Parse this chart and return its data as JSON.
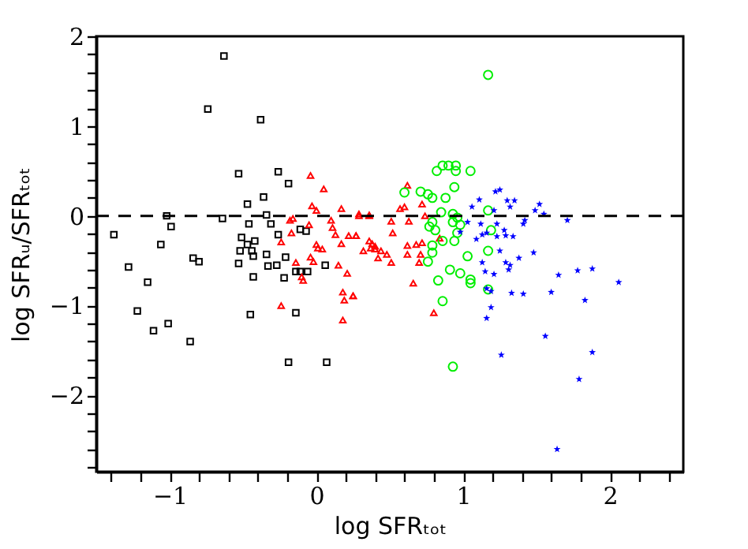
{
  "chart_data": {
    "type": "scatter",
    "xlabel": "log SFRₜₒₜ",
    "ylabel": "log SFRᵤ/SFRₜₒₜ",
    "xlim": [
      -1.5,
      2.5
    ],
    "ylim": [
      -2.85,
      2
    ],
    "xticks": [
      {
        "value": -1.4,
        "label": null
      },
      {
        "value": -1.2,
        "label": null
      },
      -1,
      {
        "value": -0.8,
        "label": null
      },
      {
        "value": -0.6,
        "label": null
      },
      {
        "value": -0.4,
        "label": null
      },
      {
        "value": -0.2,
        "label": null
      },
      0,
      {
        "value": 0.2,
        "label": null
      },
      {
        "value": 0.4,
        "label": null
      },
      {
        "value": 0.6,
        "label": null
      },
      {
        "value": 0.8,
        "label": null
      },
      1,
      {
        "value": 1.2,
        "label": null
      },
      {
        "value": 1.4,
        "label": null
      },
      {
        "value": 1.6,
        "label": null
      },
      {
        "value": 1.8,
        "label": null
      },
      2,
      {
        "value": 2.2,
        "label": null
      },
      {
        "value": 2.4,
        "label": null
      }
    ],
    "yticks": [
      {
        "value": -2.8,
        "label": null
      },
      {
        "value": -2.6,
        "label": null
      },
      {
        "value": -2.4,
        "label": null
      },
      {
        "value": -2.2,
        "label": null
      },
      -2,
      {
        "value": -1.8,
        "label": null
      },
      {
        "value": -1.6,
        "label": null
      },
      {
        "value": -1.4,
        "label": null
      },
      {
        "value": -1.2,
        "label": null
      },
      -1,
      {
        "value": -0.8,
        "label": null
      },
      {
        "value": -0.6,
        "label": null
      },
      {
        "value": -0.4,
        "label": null
      },
      {
        "value": -0.2,
        "label": null
      },
      0,
      {
        "value": 0.2,
        "label": null
      },
      {
        "value": 0.4,
        "label": null
      },
      {
        "value": 0.6,
        "label": null
      },
      {
        "value": 0.8,
        "label": null
      },
      1,
      {
        "value": 1.2,
        "label": null
      },
      {
        "value": 1.4,
        "label": null
      },
      {
        "value": 1.6,
        "label": null
      },
      {
        "value": 1.8,
        "label": null
      },
      2
    ],
    "ref_lines": [
      {
        "axis": "y",
        "value": 0,
        "color": "#000000",
        "line_style": "dashed"
      }
    ],
    "series": [
      {
        "color": "#000000",
        "marker": "square",
        "x": [
          -0.63,
          -0.74,
          -0.38,
          -0.53,
          -0.26,
          -0.19,
          -0.36,
          -0.47,
          -1.02,
          -0.64,
          -0.34,
          -1.38,
          -0.99,
          -0.46,
          -0.31,
          -1.06,
          -0.51,
          -0.47,
          -0.42,
          -0.26,
          -0.11,
          -0.07,
          -0.52,
          -0.44,
          -0.43,
          -0.34,
          -0.21,
          -0.84,
          -0.8,
          -0.53,
          -0.33,
          -0.27,
          0.06,
          -1.28,
          -0.14,
          -0.11,
          -0.06,
          -0.43,
          -0.22,
          -1.15,
          -1.22,
          -0.45,
          -0.14,
          -1.01,
          -1.11,
          -0.86,
          -0.19,
          0.07
        ],
        "values": [
          1.78,
          1.19,
          1.07,
          0.47,
          0.49,
          0.36,
          0.21,
          0.13,
          0.0,
          -0.03,
          0.01,
          -0.21,
          -0.12,
          -0.09,
          -0.09,
          -0.32,
          -0.24,
          -0.32,
          -0.28,
          -0.21,
          -0.15,
          -0.17,
          -0.39,
          -0.39,
          -0.45,
          -0.43,
          -0.46,
          -0.47,
          -0.51,
          -0.53,
          -0.56,
          -0.55,
          -0.55,
          -0.57,
          -0.62,
          -0.62,
          -0.62,
          -0.68,
          -0.69,
          -0.74,
          -1.06,
          -1.1,
          -1.08,
          -1.2,
          -1.28,
          -1.4,
          -1.63,
          -1.63
        ]
      },
      {
        "color": "#ff0000",
        "marker": "triangle",
        "x": [
          -0.04,
          0.05,
          -0.03,
          0.0,
          0.17,
          0.29,
          0.36,
          -0.18,
          -0.16,
          -0.05,
          -0.17,
          0.1,
          0.11,
          0.13,
          0.22,
          0.27,
          -0.24,
          0.0,
          0.01,
          0.17,
          0.04,
          0.32,
          0.38,
          0.4,
          0.37,
          -0.04,
          -0.02,
          -0.14,
          -0.1,
          -0.09,
          0.15,
          0.21,
          0.18,
          0.25,
          0.19,
          -0.24,
          0.18,
          0.62,
          0.57,
          0.6,
          0.72,
          0.29,
          0.36,
          0.51,
          0.63,
          0.74,
          0.27,
          0.36,
          0.4,
          0.44,
          0.48,
          0.52,
          0.62,
          0.68,
          0.72,
          0.62,
          0.71,
          0.84,
          0.42,
          0.51,
          0.7,
          0.66,
          0.25,
          0.8
        ],
        "values": [
          0.45,
          0.3,
          0.11,
          0.06,
          0.08,
          0.02,
          0.01,
          -0.05,
          -0.03,
          -0.1,
          -0.19,
          -0.05,
          -0.13,
          -0.21,
          -0.22,
          -0.22,
          -0.29,
          -0.32,
          -0.36,
          -0.31,
          -0.37,
          -0.39,
          -0.31,
          -0.37,
          -0.36,
          -0.46,
          -0.51,
          -0.52,
          -0.68,
          -0.72,
          -0.55,
          -0.64,
          -0.85,
          -0.89,
          -0.94,
          -1.0,
          -1.16,
          0.34,
          0.08,
          0.1,
          0.13,
          0.0,
          0.0,
          -0.06,
          -0.06,
          0.0,
          -0.22,
          -0.28,
          -0.34,
          -0.39,
          -0.43,
          -0.19,
          -0.33,
          -0.32,
          -0.3,
          -0.43,
          -0.43,
          -0.25,
          -0.47,
          -0.52,
          -0.52,
          -0.75,
          -0.89,
          -1.08
        ]
      },
      {
        "color": "#00ee00",
        "marker": "circle",
        "x": [
          1.17,
          0.82,
          0.86,
          0.9,
          0.95,
          0.95,
          1.05,
          0.94,
          0.71,
          0.76,
          0.79,
          0.88,
          0.6,
          1.17,
          0.85,
          0.93,
          0.96,
          0.79,
          0.77,
          0.81,
          0.93,
          0.98,
          0.96,
          1.19,
          0.86,
          0.94,
          0.79,
          0.79,
          1.17,
          1.03,
          0.76,
          0.91,
          0.98,
          0.83,
          1.05,
          1.05,
          1.17,
          0.86,
          0.93
        ],
        "values": [
          1.57,
          0.5,
          0.56,
          0.56,
          0.56,
          0.5,
          0.5,
          0.32,
          0.27,
          0.24,
          0.2,
          0.2,
          0.26,
          0.06,
          0.04,
          0.02,
          -0.02,
          -0.07,
          -0.12,
          -0.16,
          -0.07,
          -0.1,
          -0.19,
          -0.16,
          -0.28,
          -0.28,
          -0.33,
          -0.41,
          -0.39,
          -0.45,
          -0.51,
          -0.6,
          -0.64,
          -0.72,
          -0.71,
          -0.75,
          -0.82,
          -0.95,
          -1.68
        ]
      },
      {
        "color": "#0000ff",
        "marker": "star",
        "x": [
          1.11,
          1.06,
          1.22,
          1.25,
          1.3,
          1.35,
          1.32,
          1.21,
          1.52,
          1.49,
          1.55,
          1.71,
          1.03,
          1.12,
          1.23,
          1.42,
          1.41,
          0.98,
          1.13,
          1.16,
          1.28,
          1.29,
          1.23,
          1.34,
          1.09,
          1.25,
          1.48,
          1.38,
          1.13,
          1.29,
          1.32,
          1.31,
          1.15,
          1.21,
          1.78,
          1.88,
          1.65,
          2.06,
          1.16,
          1.19,
          1.33,
          1.41,
          1.6,
          1.83,
          1.19,
          1.16,
          1.56,
          1.26,
          1.88,
          1.79,
          1.64
        ],
        "values": [
          0.18,
          0.1,
          0.27,
          0.29,
          0.17,
          0.17,
          0.1,
          0.06,
          0.13,
          0.06,
          0.02,
          -0.05,
          -0.07,
          -0.09,
          -0.09,
          -0.05,
          -0.09,
          -0.18,
          -0.21,
          -0.19,
          -0.16,
          -0.22,
          -0.23,
          -0.23,
          -0.26,
          -0.39,
          -0.41,
          -0.47,
          -0.52,
          -0.52,
          -0.55,
          -0.6,
          -0.62,
          -0.65,
          -0.61,
          -0.59,
          -0.66,
          -0.74,
          -0.81,
          -0.84,
          -0.86,
          -0.87,
          -0.85,
          -0.94,
          -1.02,
          -1.14,
          -1.34,
          -1.55,
          -1.52,
          -1.82,
          -2.6
        ]
      }
    ]
  }
}
